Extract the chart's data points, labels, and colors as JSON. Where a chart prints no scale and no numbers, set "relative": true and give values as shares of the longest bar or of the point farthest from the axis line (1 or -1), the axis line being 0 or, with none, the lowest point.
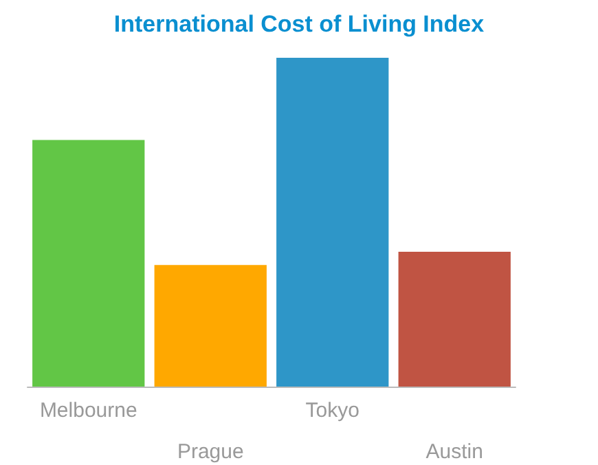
{
  "chart_data": {
    "type": "bar",
    "title": "International Cost of Living Index",
    "relative": true,
    "categories": [
      "Melbourne",
      "Prague",
      "Tokyo",
      "Austin"
    ],
    "values": [
      0.75,
      0.37,
      1,
      0.41
    ],
    "colors": [
      "#62c646",
      "#ffa800",
      "#2e96c8",
      "#c05443"
    ],
    "grid": false
  }
}
